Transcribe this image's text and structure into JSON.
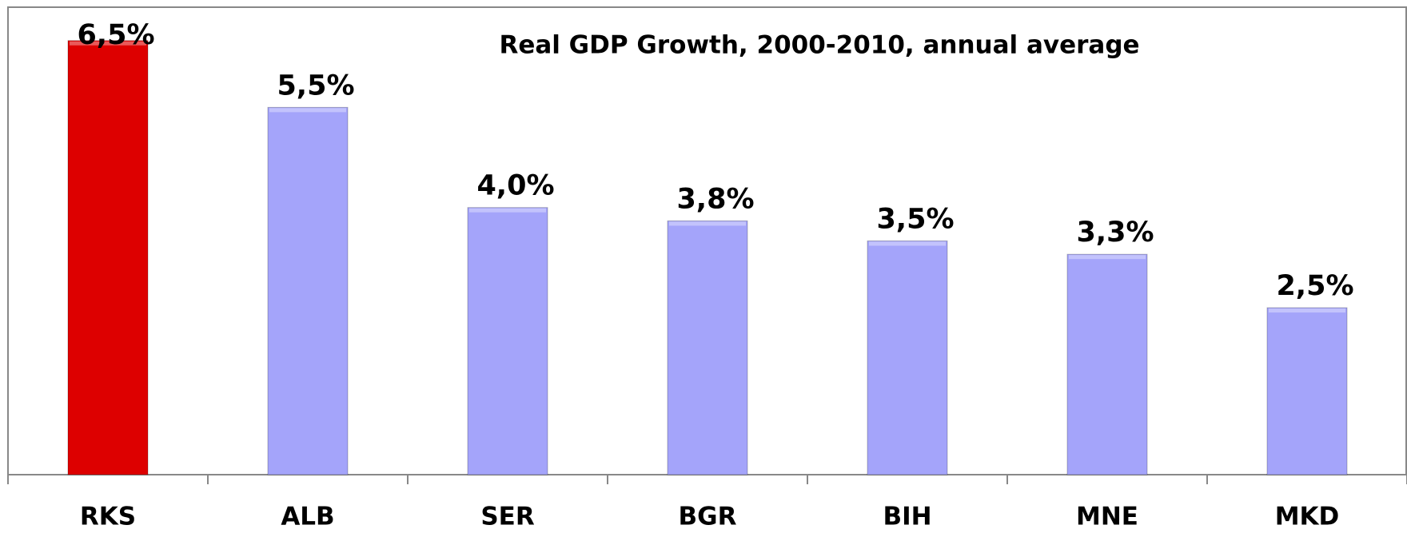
{
  "chart_data": {
    "type": "bar",
    "title": "Real GDP Growth, 2000-2010, annual average",
    "categories": [
      "RKS",
      "ALB",
      "SER",
      "BGR",
      "BIH",
      "MNE",
      "MKD"
    ],
    "values": [
      6.5,
      5.5,
      4.0,
      3.8,
      3.5,
      3.3,
      2.5
    ],
    "value_labels": [
      "6,5%",
      "5,5%",
      "4,0%",
      "3,8%",
      "3,5%",
      "3,3%",
      "2,5%"
    ],
    "colors": [
      "#dd0000",
      "#a4a4fa",
      "#a4a4fa",
      "#a4a4fa",
      "#a4a4fa",
      "#a4a4fa",
      "#a4a4fa"
    ],
    "ylim": [
      0,
      7
    ]
  }
}
